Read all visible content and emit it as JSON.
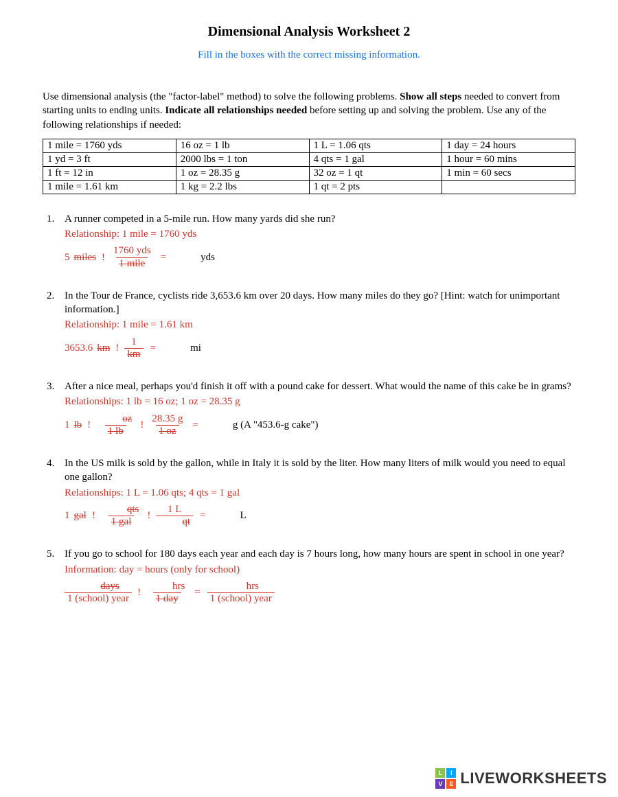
{
  "title": "Dimensional  Analysis Worksheet  2",
  "subtitle": "Fill in the boxes with the correct missing information.",
  "intro_1": "Use dimensional analysis (the \"factor-label\" method) to solve the following problems. ",
  "intro_b1": "Show all  steps",
  "intro_2": " needed to convert from starting units to ending units. ",
  "intro_b2": "Indicate all relationships needed",
  "intro_3": " before setting up and solving the problem. Use any of the following relationships if needed:",
  "table": {
    "rows": [
      [
        "1 mile = 1760 yds",
        "16 oz = 1 lb",
        "1 L = 1.06 qts",
        "1 day = 24 hours"
      ],
      [
        "1 yd = 3 ft",
        "2000 lbs = 1 ton",
        "4 qts = 1 gal",
        "1 hour = 60 mins"
      ],
      [
        "1 ft = 12 in",
        "1 oz = 28.35 g",
        "32 oz = 1 qt",
        "1 min = 60 secs"
      ],
      [
        "1 mile = 1.61 km",
        "1 kg = 2.2 lbs",
        "1 qt = 2 pts",
        ""
      ]
    ]
  },
  "problems": [
    {
      "num": "1.",
      "text": "A runner competed in a 5-mile run. How many yards did she run?",
      "rel": "Relationship: 1 mile = 1760 yds",
      "work": {
        "start_val": "5",
        "start_unit": "miles",
        "f1_num": "1760 yds",
        "f1_den": "1  mile",
        "result_unit": "yds"
      }
    },
    {
      "num": "2.",
      "text": "In the Tour de France, cyclists ride 3,653.6 km over 20 days. How many miles do they go? [Hint: watch for unimportant information.]",
      "rel": "Relationship: 1 mile = 1.61 km",
      "work": {
        "start_val": "3653.6",
        "start_unit": "km",
        "f1_num": "1",
        "f1_den": "km",
        "result_unit": "mi"
      }
    },
    {
      "num": "3.",
      "text": "After a nice meal, perhaps you'd finish it off with a pound cake for dessert. What would the name of this cake be in grams?",
      "rel": "Relationships: 1 lb = 16 oz; 1 oz = 28.35 g",
      "work": {
        "start_val": "1",
        "start_unit": "lb",
        "f1_num": "oz",
        "f1_den": "1  lb",
        "f2_num": "28.35 g",
        "f2_den": "1  oz",
        "result_unit": "g  (A \"453.6-g cake\")"
      }
    },
    {
      "num": "4.",
      "text": "In the US milk is sold by the gallon, while in Italy it is sold by the liter. How many liters of milk would you need to equal one gallon?",
      "rel": "Relationships: 1 L = 1.06 qts; 4 qts = 1 gal",
      "work": {
        "start_val": "1",
        "start_unit": "gal",
        "f1_num": "qts",
        "f1_den": "1  gal",
        "f2_num": "1 L",
        "f2_den": "qt",
        "result_unit": "L"
      }
    },
    {
      "num": "5.",
      "text": "If you go to school for 180 days each year and each day is 7 hours long, how many hours are spent in school in one year?",
      "rel": "Information:     day =     hours (only for school)",
      "work5": {
        "f1_num": "days",
        "f1_den": "1 (school) year",
        "f2_num": "hrs",
        "f2_den": "1  day",
        "f3_num": "hrs",
        "f3_den": "1 (school) year"
      }
    }
  ],
  "footer": {
    "badge": [
      "L",
      "I",
      "V",
      "E"
    ],
    "text": "LIVEWORKSHEETS"
  }
}
